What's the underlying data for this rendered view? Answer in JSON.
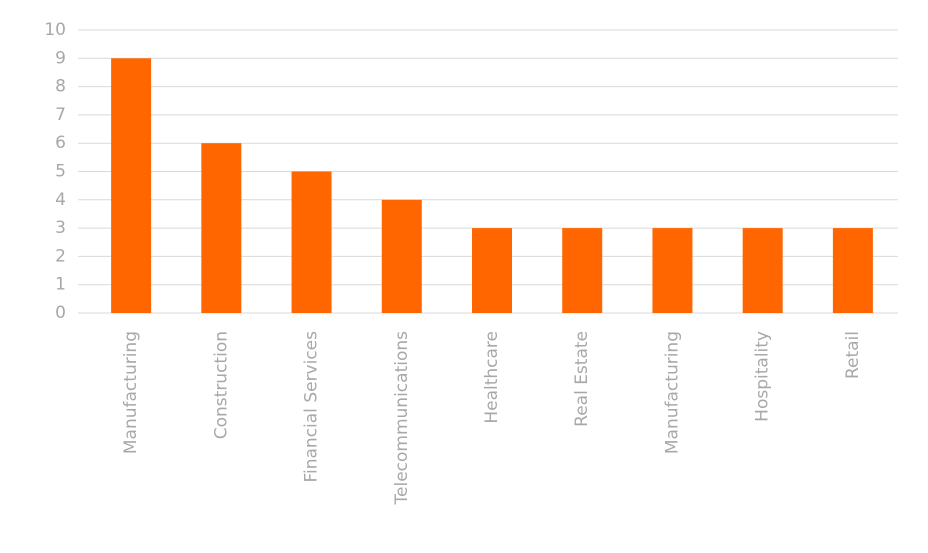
{
  "chart_data": {
    "type": "bar",
    "categories": [
      "Manufacturing",
      "Construction",
      "Financial Services",
      "Telecommunications",
      "Healthcare",
      "Real Estate",
      "Manufacturing",
      "Hospitality",
      "Retail"
    ],
    "values": [
      9,
      6,
      5,
      4,
      3,
      3,
      3,
      3,
      3
    ],
    "color": "#ff6600",
    "ylim": [
      0,
      10
    ],
    "yticks": [
      0,
      1,
      2,
      3,
      4,
      5,
      6,
      7,
      8,
      9,
      10
    ],
    "grid": true
  }
}
